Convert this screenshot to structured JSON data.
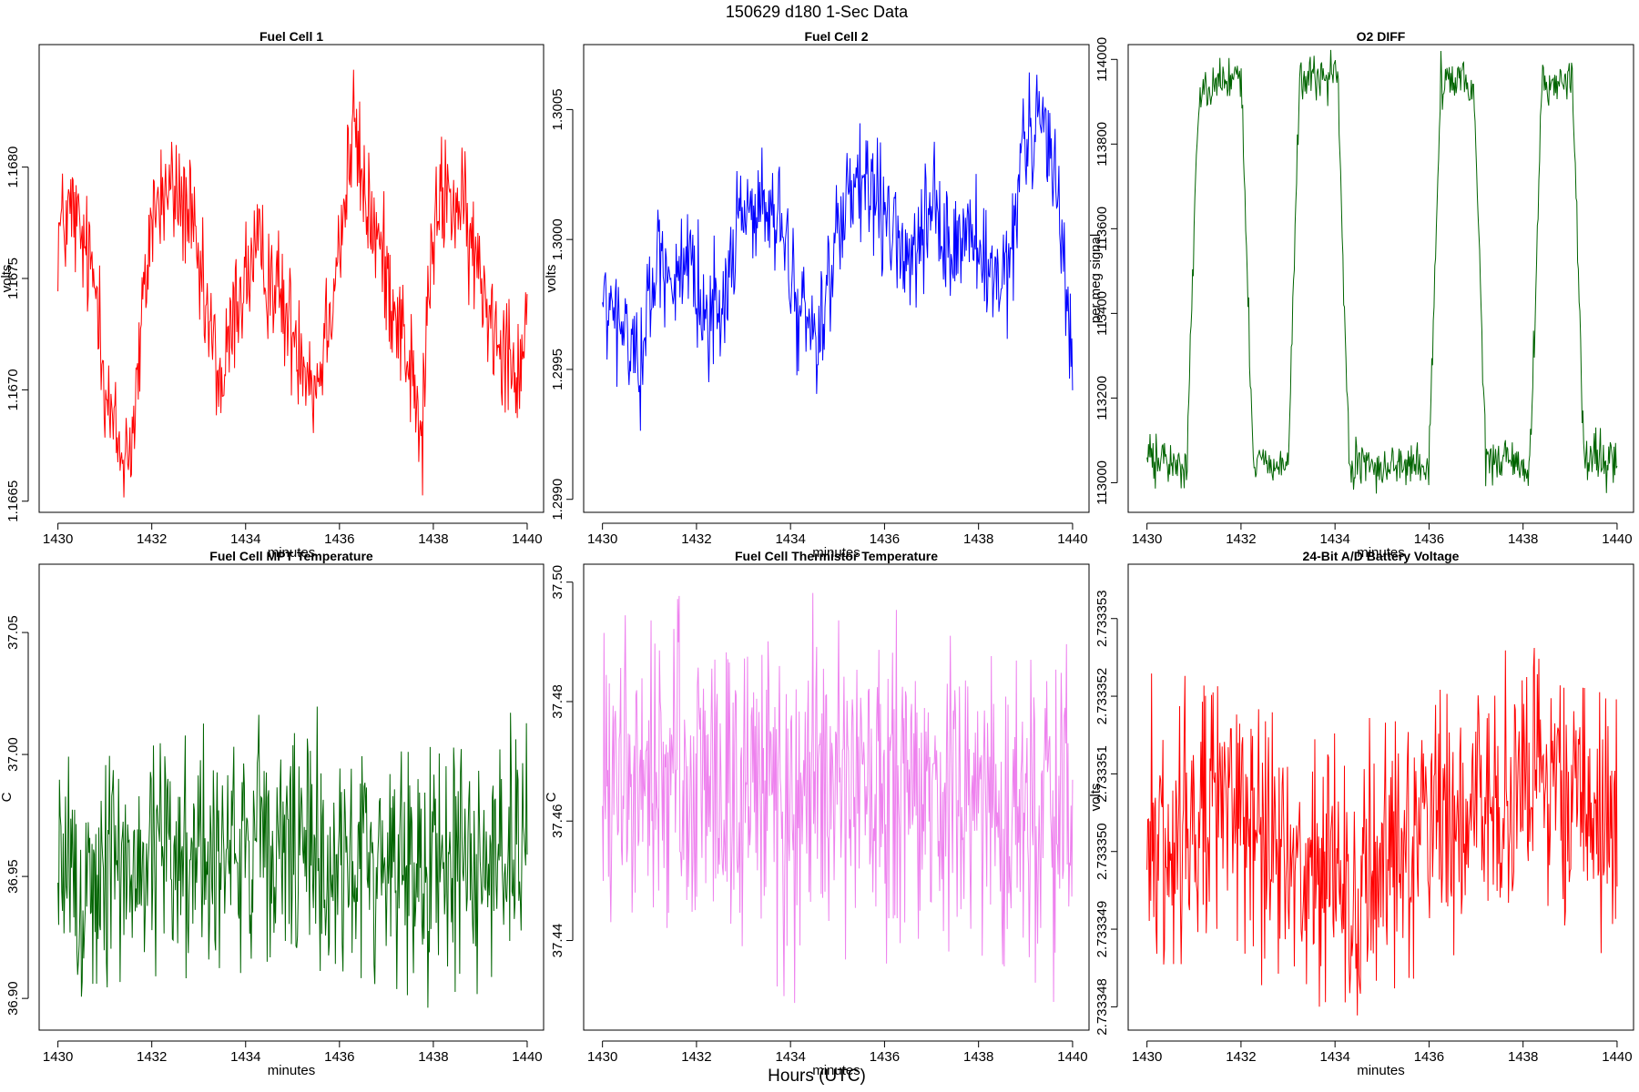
{
  "figure": {
    "title": "150629   d180   1-Sec Data",
    "outer_xlabel": "Hours (UTC)"
  },
  "chart_data": [
    {
      "type": "line",
      "title": "Fuel Cell 1",
      "xlabel": "minutes",
      "ylabel": "volts",
      "color": "#ff0000",
      "xlim": [
        1429.6,
        1440.35
      ],
      "ylim": [
        1.16645,
        1.16855
      ],
      "xticks": [
        1430,
        1432,
        1434,
        1436,
        1438,
        1440
      ],
      "yticks": [
        1.1665,
        1.167,
        1.1675,
        1.168
      ],
      "ytick_labels": [
        "1.1665",
        "1.1670",
        "1.1675",
        "1.1680"
      ],
      "series": [
        {
          "x": [
            1430.0,
            1430.3,
            1430.6,
            1430.9,
            1431.0,
            1431.2,
            1431.35,
            1431.6,
            1431.8,
            1432.0,
            1432.4,
            1432.8,
            1433.0,
            1433.3,
            1433.5,
            1433.8,
            1434.2,
            1434.6,
            1434.9,
            1435.2,
            1435.5,
            1435.8,
            1436.1,
            1436.3,
            1436.5,
            1436.9,
            1437.3,
            1437.6,
            1437.75,
            1437.9,
            1438.2,
            1438.6,
            1439.0,
            1439.3,
            1439.6,
            1439.8,
            1440.0
          ],
          "y": [
            1.1677,
            1.1678,
            1.1676,
            1.1674,
            1.167,
            1.1668,
            1.1667,
            1.1668,
            1.1673,
            1.1678,
            1.1679,
            1.1678,
            1.1675,
            1.1672,
            1.167,
            1.1674,
            1.1676,
            1.1675,
            1.1673,
            1.1672,
            1.167,
            1.1674,
            1.1678,
            1.1682,
            1.1679,
            1.1676,
            1.1673,
            1.167,
            1.1667,
            1.1675,
            1.1679,
            1.1678,
            1.1675,
            1.1673,
            1.1672,
            1.1671,
            1.1673
          ],
          "noise": 0.00028,
          "samples": 620
        }
      ]
    },
    {
      "type": "line",
      "title": "Fuel Cell 2",
      "xlabel": "minutes",
      "ylabel": "volts",
      "color": "#0000ff",
      "xlim": [
        1429.6,
        1440.35
      ],
      "ylim": [
        1.29895,
        1.30075
      ],
      "xticks": [
        1430,
        1432,
        1434,
        1436,
        1438,
        1440
      ],
      "yticks": [
        1.299,
        1.2995,
        1.3,
        1.3005
      ],
      "ytick_labels": [
        "1.2990",
        "1.2995",
        "1.3000",
        "1.3005"
      ],
      "series": [
        {
          "x": [
            1430.0,
            1430.4,
            1430.8,
            1431.2,
            1431.6,
            1432.0,
            1432.5,
            1433.0,
            1433.4,
            1433.8,
            1434.2,
            1434.6,
            1435.0,
            1435.4,
            1435.8,
            1436.2,
            1436.6,
            1437.0,
            1437.4,
            1437.8,
            1438.2,
            1438.6,
            1439.0,
            1439.4,
            1439.7,
            1440.0
          ],
          "y": [
            1.29975,
            1.29965,
            1.29955,
            1.29995,
            1.29985,
            1.2998,
            1.2997,
            1.30015,
            1.3001,
            1.30005,
            1.2997,
            1.29965,
            1.3,
            1.3002,
            1.30015,
            1.3,
            1.2999,
            1.3001,
            1.29995,
            1.30005,
            1.29985,
            1.2998,
            1.3004,
            1.30045,
            1.3002,
            1.2995
          ],
          "noise": 0.00022,
          "samples": 620
        }
      ]
    },
    {
      "type": "line",
      "title": "O2 DIFF",
      "xlabel": "minutes",
      "ylabel": "per meg signal",
      "color": "#006400",
      "xlim": [
        1429.6,
        1440.35
      ],
      "ylim": [
        112930,
        114035
      ],
      "xticks": [
        1430,
        1432,
        1434,
        1436,
        1438,
        1440
      ],
      "yticks": [
        113000,
        113200,
        113400,
        113600,
        113800,
        114000
      ],
      "ytick_labels": [
        "113000",
        "113200",
        "113400",
        "113600",
        "113800",
        "114000"
      ],
      "series": [
        {
          "x": [
            1430.0,
            1430.8,
            1430.85,
            1431.1,
            1431.9,
            1432.0,
            1432.25,
            1432.9,
            1433.0,
            1433.25,
            1433.9,
            1434.05,
            1434.3,
            1435.9,
            1436.0,
            1436.25,
            1436.85,
            1436.95,
            1437.2,
            1438.05,
            1438.15,
            1438.4,
            1438.95,
            1439.05,
            1439.3,
            1439.9,
            1440.0
          ],
          "y": [
            113060,
            113040,
            113040,
            113930,
            113960,
            113960,
            113060,
            113040,
            113040,
            113950,
            113960,
            113960,
            113040,
            113040,
            113040,
            113950,
            113940,
            113940,
            113060,
            113040,
            113040,
            113940,
            113950,
            113950,
            113050,
            113050,
            113050
          ],
          "noise": 55,
          "samples": 620
        }
      ]
    },
    {
      "type": "line",
      "title": "Fuel Cell MPT Temperature",
      "xlabel": "minutes",
      "ylabel": "C",
      "color": "#006400",
      "xlim": [
        1429.6,
        1440.35
      ],
      "ylim": [
        36.887,
        37.078
      ],
      "xticks": [
        1430,
        1432,
        1434,
        1436,
        1438,
        1440
      ],
      "yticks": [
        36.9,
        36.95,
        37.0,
        37.05
      ],
      "ytick_labels": [
        "36.90",
        "36.95",
        "37.00",
        "37.05"
      ],
      "series": [
        {
          "x": [
            1430.0,
            1430.5,
            1431.0,
            1431.5,
            1432.0,
            1433.0,
            1434.0,
            1435.0,
            1436.0,
            1437.0,
            1438.0,
            1439.0,
            1440.0
          ],
          "y": [
            36.95,
            36.946,
            36.95,
            36.955,
            36.958,
            36.962,
            36.96,
            36.958,
            36.956,
            36.957,
            36.955,
            36.958,
            36.96
          ],
          "noise": 0.05,
          "samples": 620
        }
      ]
    },
    {
      "type": "line",
      "title": "Fuel Cell Thermistor Temperature",
      "xlabel": "minutes",
      "ylabel": "C",
      "color": "#ee82ee",
      "xlim": [
        1429.6,
        1440.35
      ],
      "ylim": [
        37.425,
        37.503
      ],
      "xticks": [
        1430,
        1432,
        1434,
        1436,
        1438,
        1440
      ],
      "yticks": [
        37.44,
        37.46,
        37.48,
        37.5
      ],
      "ytick_labels": [
        "37.44",
        "37.46",
        "37.48",
        "37.50"
      ],
      "series": [
        {
          "x": [
            1430.0,
            1431.0,
            1432.0,
            1433.0,
            1434.0,
            1435.0,
            1436.0,
            1437.0,
            1438.0,
            1439.0,
            1440.0
          ],
          "y": [
            37.465,
            37.466,
            37.467,
            37.466,
            37.464,
            37.464,
            37.463,
            37.463,
            37.462,
            37.462,
            37.463
          ],
          "noise": 0.026,
          "samples": 620
        }
      ]
    },
    {
      "type": "line",
      "title": "24-Bit A/D Battery Voltage",
      "xlabel": "minutes",
      "ylabel": "volts",
      "color": "#ff0000",
      "xlim": [
        1429.6,
        1440.35
      ],
      "ylim": [
        2.7333477,
        2.7333537
      ],
      "xticks": [
        1430,
        1432,
        1434,
        1436,
        1438,
        1440
      ],
      "yticks": [
        2.733348,
        2.733349,
        2.73335,
        2.733351,
        2.733352,
        2.733353
      ],
      "ytick_labels": [
        "2.733348",
        "2.733349",
        "2.733350",
        "2.733351",
        "2.733352",
        "2.733353"
      ],
      "series": [
        {
          "x": [
            1430.0,
            1431.0,
            1432.0,
            1432.5,
            1433.0,
            1434.0,
            1434.5,
            1435.0,
            1436.0,
            1437.0,
            1438.0,
            1439.0,
            1440.0
          ],
          "y": [
            2.73335,
            2.7333505,
            2.7333506,
            2.7333502,
            2.73335,
            2.7333495,
            2.7333493,
            2.73335,
            2.7333505,
            2.7333508,
            2.7333508,
            2.7333506,
            2.7333507
          ],
          "noise": 1.7e-06,
          "samples": 620
        }
      ]
    }
  ]
}
